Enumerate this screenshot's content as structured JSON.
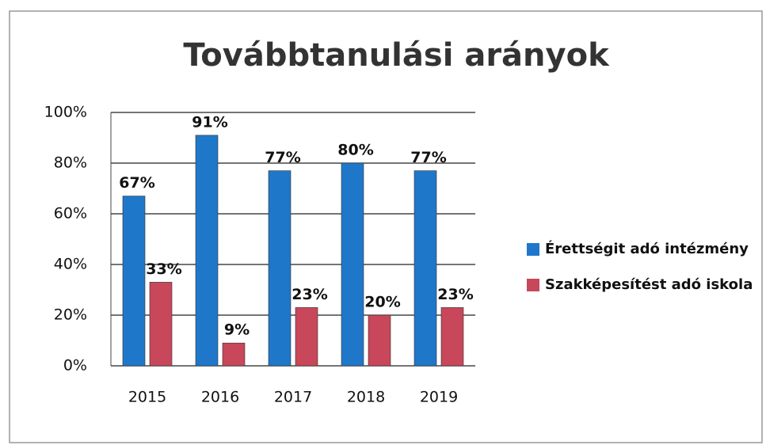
{
  "chart_data": {
    "type": "bar",
    "title": "Továbbtanulási arányok",
    "categories": [
      "2015",
      "2016",
      "2017",
      "2018",
      "2019"
    ],
    "series": [
      {
        "name": "Érettségit adó intézmény",
        "color": "#1f77c9",
        "values": [
          67,
          91,
          77,
          80,
          77
        ],
        "value_labels": [
          "67%",
          "91%",
          "77%",
          "80%",
          "77%"
        ]
      },
      {
        "name": "Szakképesítést adó iskola",
        "color": "#c8475a",
        "values": [
          33,
          9,
          23,
          20,
          23
        ],
        "value_labels": [
          "33%",
          "9%",
          "23%",
          "20%",
          "23%"
        ]
      }
    ],
    "ylim": [
      0,
      100
    ],
    "yticks": [
      {
        "value": 0,
        "label": "0%"
      },
      {
        "value": 20,
        "label": "20%"
      },
      {
        "value": 40,
        "label": "40%"
      },
      {
        "value": 60,
        "label": "60%"
      },
      {
        "value": 80,
        "label": "80%"
      },
      {
        "value": 100,
        "label": "100%"
      }
    ],
    "grid": true,
    "legend": "right"
  }
}
